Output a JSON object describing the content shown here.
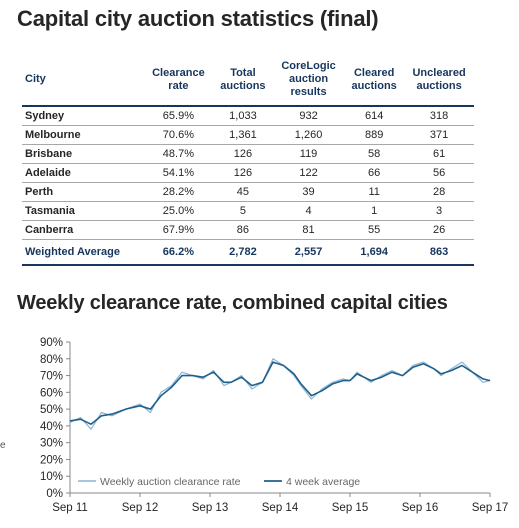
{
  "title": "Capital city auction statistics (final)",
  "table": {
    "headers": {
      "city": "City",
      "clearance": [
        "Clearance",
        "rate"
      ],
      "total": [
        "Total",
        "auctions"
      ],
      "corelogic": [
        "CoreLogic",
        "auction",
        "results"
      ],
      "cleared": [
        "Cleared",
        "auctions"
      ],
      "uncleared": [
        "Uncleared",
        "auctions"
      ]
    },
    "rows": [
      {
        "city": "Sydney",
        "clearance": "65.9%",
        "total": "1,033",
        "corelogic": "932",
        "cleared": "614",
        "uncleared": "318"
      },
      {
        "city": "Melbourne",
        "clearance": "70.6%",
        "total": "1,361",
        "corelogic": "1,260",
        "cleared": "889",
        "uncleared": "371"
      },
      {
        "city": "Brisbane",
        "clearance": "48.7%",
        "total": "126",
        "corelogic": "119",
        "cleared": "58",
        "uncleared": "61"
      },
      {
        "city": "Adelaide",
        "clearance": "54.1%",
        "total": "126",
        "corelogic": "122",
        "cleared": "66",
        "uncleared": "56"
      },
      {
        "city": "Perth",
        "clearance": "28.2%",
        "total": "45",
        "corelogic": "39",
        "cleared": "11",
        "uncleared": "28"
      },
      {
        "city": "Tasmania",
        "clearance": "25.0%",
        "total": "5",
        "corelogic": "4",
        "cleared": "1",
        "uncleared": "3"
      },
      {
        "city": "Canberra",
        "clearance": "67.9%",
        "total": "86",
        "corelogic": "81",
        "cleared": "55",
        "uncleared": "26"
      }
    ],
    "average": {
      "city": "Weighted Average",
      "clearance": "66.2%",
      "total": "2,782",
      "corelogic": "2,557",
      "cleared": "1,694",
      "uncleared": "863"
    }
  },
  "edge_mark": "e",
  "chart_data": {
    "type": "line",
    "title": "Weekly clearance rate, combined capital cities",
    "xlabel": "",
    "ylabel": "",
    "ylim": [
      0,
      90
    ],
    "yticks": [
      "0%",
      "10%",
      "20%",
      "30%",
      "40%",
      "50%",
      "60%",
      "70%",
      "80%",
      "90%"
    ],
    "xticks": [
      "Sep 11",
      "Sep 12",
      "Sep 13",
      "Sep 14",
      "Sep 15",
      "Sep 16",
      "Sep 17"
    ],
    "grid": false,
    "legend_position": "bottom-left",
    "colors": {
      "weekly": "#8cb4d2",
      "avg": "#1f5f8b"
    },
    "series": [
      {
        "name": "Weekly auction clearance rate",
        "x": [
          2011.7,
          2011.85,
          2012.0,
          2012.15,
          2012.3,
          2012.5,
          2012.7,
          2012.85,
          2013.0,
          2013.15,
          2013.3,
          2013.45,
          2013.6,
          2013.75,
          2013.9,
          2014.0,
          2014.15,
          2014.3,
          2014.45,
          2014.6,
          2014.75,
          2014.9,
          2015.0,
          2015.15,
          2015.3,
          2015.45,
          2015.6,
          2015.7,
          2015.8,
          2015.9,
          2016.0,
          2016.15,
          2016.3,
          2016.45,
          2016.6,
          2016.75,
          2016.9,
          2017.0,
          2017.15,
          2017.3,
          2017.45,
          2017.6,
          2017.7
        ],
        "values": [
          42,
          45,
          38,
          48,
          46,
          50,
          53,
          48,
          60,
          64,
          72,
          70,
          68,
          73,
          64,
          66,
          70,
          62,
          66,
          80,
          76,
          70,
          64,
          56,
          62,
          66,
          68,
          67,
          72,
          69,
          66,
          70,
          73,
          70,
          76,
          78,
          74,
          70,
          74,
          78,
          72,
          66,
          67
        ]
      },
      {
        "name": "4 week average",
        "x": [
          2011.7,
          2011.85,
          2012.0,
          2012.15,
          2012.3,
          2012.5,
          2012.7,
          2012.85,
          2013.0,
          2013.15,
          2013.3,
          2013.45,
          2013.6,
          2013.75,
          2013.9,
          2014.0,
          2014.15,
          2014.3,
          2014.45,
          2014.6,
          2014.75,
          2014.9,
          2015.0,
          2015.15,
          2015.3,
          2015.45,
          2015.6,
          2015.7,
          2015.8,
          2015.9,
          2016.0,
          2016.15,
          2016.3,
          2016.45,
          2016.6,
          2016.75,
          2016.9,
          2017.0,
          2017.15,
          2017.3,
          2017.45,
          2017.6,
          2017.7
        ],
        "values": [
          43,
          44,
          41,
          46,
          47,
          50,
          52,
          50,
          58,
          63,
          70,
          70,
          69,
          72,
          66,
          66,
          69,
          64,
          66,
          78,
          76,
          71,
          65,
          58,
          61,
          65,
          67,
          67,
          71,
          69,
          67,
          69,
          72,
          70,
          75,
          77,
          74,
          71,
          73,
          76,
          72,
          68,
          67
        ]
      }
    ]
  }
}
